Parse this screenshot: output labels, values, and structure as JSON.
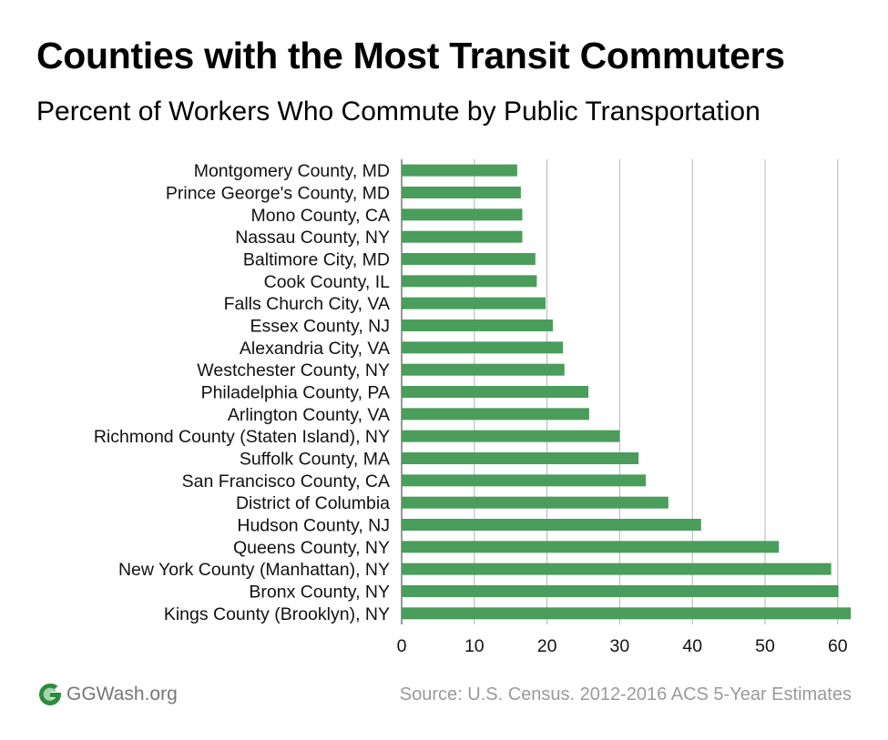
{
  "header": {
    "title": "Counties with the Most Transit Commuters",
    "subtitle": "Percent of Workers Who Commute by Public Transportation"
  },
  "footer": {
    "logo_text": "GGWash.org",
    "source": "Source: U.S. Census. 2012-2016 ACS 5-Year Estimates"
  },
  "colors": {
    "bar": "#4a9d5b",
    "grid": "#b3b3b3",
    "logo": "#2e8b3e"
  },
  "chart_data": {
    "type": "bar",
    "orientation": "horizontal",
    "title": "Counties with the Most Transit Commuters",
    "subtitle": "Percent of Workers Who Commute by Public Transportation",
    "xlabel": "",
    "ylabel": "",
    "xlim": [
      0,
      62
    ],
    "xticks": [
      0,
      10,
      20,
      30,
      40,
      50,
      60
    ],
    "grid": "vertical",
    "legend": "none",
    "categories": [
      "Montgomery County, MD",
      "Prince George's County, MD",
      "Mono County, CA",
      "Nassau County, NY",
      "Baltimore City, MD",
      "Cook County, IL",
      "Falls Church City, VA",
      "Essex County, NJ",
      "Alexandria City, VA",
      "Westchester County, NY",
      "Philadelphia County, PA",
      "Arlington County, VA",
      "Richmond County (Staten Island), NY",
      "Suffolk County, MA",
      "San Francisco County, CA",
      "District of Columbia",
      "Hudson County, NJ",
      "Queens County, NY",
      "New York County (Manhattan), NY",
      "Bronx County, NY",
      "Kings County (Brooklyn), NY"
    ],
    "values": [
      15.9,
      16.4,
      16.6,
      16.6,
      18.4,
      18.6,
      19.8,
      20.8,
      22.2,
      22.4,
      25.7,
      25.8,
      30.0,
      32.6,
      33.6,
      36.7,
      41.2,
      51.9,
      59.1,
      60.1,
      61.8
    ]
  }
}
